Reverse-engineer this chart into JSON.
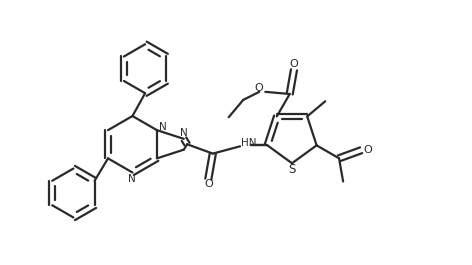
{
  "bg_color": "#ffffff",
  "line_color": "#2a2a2a",
  "line_width": 1.6,
  "fig_width": 4.72,
  "fig_height": 2.65,
  "dpi": 100,
  "xlim": [
    0,
    10
  ],
  "ylim": [
    0,
    5.6
  ]
}
